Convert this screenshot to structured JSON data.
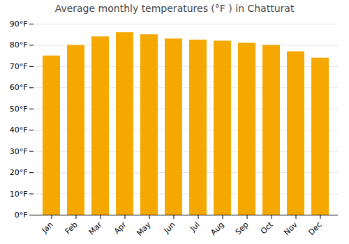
{
  "chart_data": {
    "type": "bar",
    "title": "Average monthly temperatures (°F ) in Chatturat",
    "categories": [
      "Jan",
      "Feb",
      "Mar",
      "Apr",
      "May",
      "Jun",
      "Jul",
      "Aug",
      "Sep",
      "Oct",
      "Nov",
      "Dec"
    ],
    "values": [
      75,
      80,
      84,
      86,
      85,
      83,
      82.5,
      82,
      81,
      80,
      77,
      74
    ],
    "color": "#F5A800",
    "ylim": [
      0,
      90
    ],
    "yticks": [
      {
        "value": 0,
        "label": "0°F"
      },
      {
        "value": 10,
        "label": "10°F"
      },
      {
        "value": 20,
        "label": "20°F"
      },
      {
        "value": 30,
        "label": "30°F"
      },
      {
        "value": 40,
        "label": "40°F"
      },
      {
        "value": 50,
        "label": "50°F"
      },
      {
        "value": 60,
        "label": "60°F"
      },
      {
        "value": 70,
        "label": "70°F"
      },
      {
        "value": 80,
        "label": "80°F"
      },
      {
        "value": 90,
        "label": "90°F"
      }
    ],
    "grid": true
  }
}
